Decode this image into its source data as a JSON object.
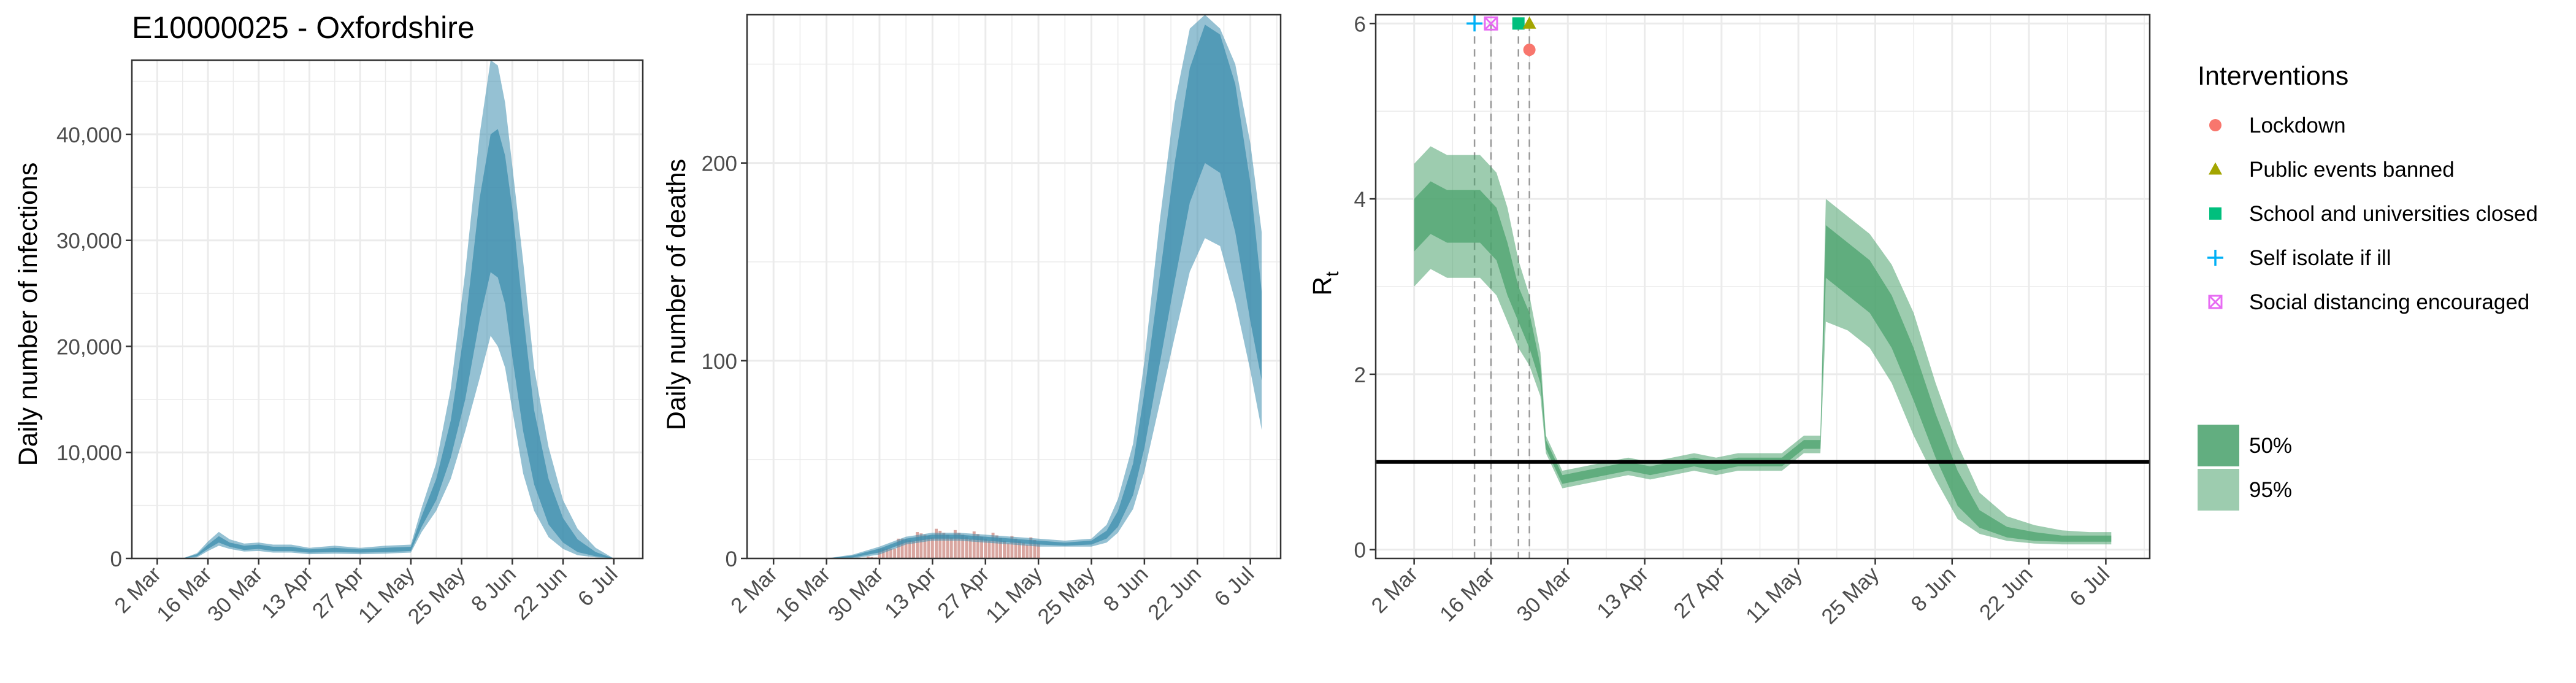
{
  "colors": {
    "infections": "#3E8EAE",
    "deaths": "#3E8EAE",
    "observed_deaths": "#D9A6A0",
    "rt": "#4CA36E",
    "lockdown": "#F8766D",
    "public_events_banned": "#A3A500",
    "school_closed": "#00BF7D",
    "self_isolate": "#00B0F6",
    "social_distancing": "#E76BF3",
    "reference_line": "#000000",
    "grid": "#EBEBEB",
    "axis_text": "#4D4D4D"
  },
  "chart_data": [
    {
      "type": "area",
      "title": "E10000025 - Oxfordshire",
      "xlabel": "",
      "ylabel": "Daily number of infections",
      "x_ticks": [
        "2 Mar",
        "16 Mar",
        "30 Mar",
        "13 Apr",
        "27 Apr",
        "11 May",
        "25 May",
        "8 Jun",
        "22 Jun",
        "6 Jul"
      ],
      "y_ticks": [
        "0",
        "10,000",
        "20,000",
        "30,000",
        "40,000"
      ],
      "x_range": [
        "2020-02-24",
        "2020-07-14"
      ],
      "ylim": [
        0,
        47000
      ],
      "grid": true,
      "series": [
        {
          "dates": [
            "2020-03-02",
            "2020-03-09",
            "2020-03-13",
            "2020-03-16",
            "2020-03-19",
            "2020-03-22",
            "2020-03-26",
            "2020-03-30",
            "2020-04-03",
            "2020-04-08",
            "2020-04-13",
            "2020-04-20",
            "2020-04-27",
            "2020-05-04",
            "2020-05-11",
            "2020-05-14",
            "2020-05-18",
            "2020-05-22",
            "2020-05-26",
            "2020-05-30",
            "2020-06-02",
            "2020-06-04",
            "2020-06-06",
            "2020-06-08",
            "2020-06-11",
            "2020-06-14",
            "2020-06-18",
            "2020-06-22",
            "2020-06-26",
            "2020-07-01",
            "2020-07-06"
          ],
          "median": [
            0,
            0,
            300,
            1100,
            1800,
            1300,
            1000,
            1100,
            900,
            900,
            700,
            800,
            700,
            800,
            900,
            3500,
            6500,
            11000,
            18000,
            27000,
            32500,
            33000,
            31000,
            26000,
            17000,
            10000,
            5000,
            2500,
            1100,
            400,
            0
          ],
          "ci50_low": [
            0,
            0,
            200,
            900,
            1500,
            1100,
            800,
            900,
            700,
            700,
            550,
            600,
            550,
            600,
            700,
            3000,
            5500,
            9500,
            15000,
            22500,
            27000,
            26500,
            24000,
            19000,
            12000,
            7000,
            3200,
            1500,
            600,
            200,
            0
          ],
          "ci50_high": [
            0,
            0,
            400,
            1300,
            2100,
            1500,
            1200,
            1300,
            1100,
            1100,
            850,
            1000,
            850,
            1000,
            1100,
            4000,
            7500,
            13000,
            22000,
            34000,
            40000,
            40500,
            38000,
            33000,
            23000,
            14000,
            7500,
            3800,
            1800,
            600,
            0
          ],
          "ci95_low": [
            0,
            0,
            100,
            700,
            1200,
            900,
            650,
            700,
            550,
            550,
            400,
            450,
            400,
            450,
            550,
            2500,
            4500,
            7500,
            12000,
            17000,
            21000,
            20000,
            18000,
            14000,
            8000,
            4500,
            2000,
            900,
            300,
            100,
            0
          ],
          "ci95_high": [
            0,
            0,
            500,
            1600,
            2500,
            1800,
            1400,
            1500,
            1300,
            1300,
            1000,
            1200,
            1000,
            1200,
            1300,
            4800,
            9000,
            16000,
            27000,
            40000,
            47000,
            46500,
            43000,
            37000,
            28000,
            18000,
            10500,
            5500,
            2800,
            1000,
            0
          ]
        }
      ]
    },
    {
      "type": "area",
      "title": "",
      "xlabel": "",
      "ylabel": "Daily number of deaths",
      "x_ticks": [
        "2 Mar",
        "16 Mar",
        "30 Mar",
        "13 Apr",
        "27 Apr",
        "11 May",
        "25 May",
        "8 Jun",
        "22 Jun",
        "6 Jul"
      ],
      "y_ticks": [
        "0",
        "100",
        "200"
      ],
      "x_range": [
        "2020-02-24",
        "2020-07-14"
      ],
      "ylim": [
        0,
        275
      ],
      "grid": true,
      "series": [
        {
          "dates": [
            "2020-03-02",
            "2020-03-16",
            "2020-03-23",
            "2020-03-30",
            "2020-04-06",
            "2020-04-13",
            "2020-04-20",
            "2020-04-27",
            "2020-05-04",
            "2020-05-11",
            "2020-05-18",
            "2020-05-25",
            "2020-05-29",
            "2020-06-01",
            "2020-06-05",
            "2020-06-08",
            "2020-06-12",
            "2020-06-16",
            "2020-06-20",
            "2020-06-24",
            "2020-06-28",
            "2020-07-02",
            "2020-07-06",
            "2020-07-09"
          ],
          "median": [
            0,
            0,
            1,
            4,
            9,
            11,
            11,
            10,
            9,
            8,
            7,
            8,
            12,
            20,
            40,
            70,
            120,
            170,
            215,
            238,
            230,
            200,
            150,
            110
          ],
          "ci50_low": [
            0,
            0,
            0.5,
            3,
            8,
            10,
            10,
            9,
            8,
            7,
            6.5,
            7,
            10,
            16,
            32,
            56,
            98,
            140,
            180,
            200,
            195,
            165,
            120,
            90
          ],
          "ci50_high": [
            0,
            0,
            1.5,
            5,
            10,
            12,
            12,
            11,
            10,
            9,
            8,
            9,
            14,
            24,
            48,
            84,
            142,
            200,
            248,
            270,
            265,
            240,
            190,
            135
          ],
          "ci95_low": [
            0,
            0,
            0,
            2,
            7,
            9,
            9,
            8,
            7,
            6,
            6,
            6,
            8,
            13,
            25,
            44,
            78,
            112,
            145,
            162,
            158,
            130,
            95,
            65
          ],
          "ci95_high": [
            0,
            0,
            2,
            6,
            11,
            13,
            13,
            12,
            11,
            10,
            9,
            10,
            17,
            30,
            58,
            100,
            170,
            230,
            268,
            275,
            268,
            250,
            210,
            165
          ]
        }
      ],
      "observed_deaths": {
        "dates": [
          "2020-03-27",
          "2020-03-30",
          "2020-04-02",
          "2020-04-05",
          "2020-04-08",
          "2020-04-11",
          "2020-04-14",
          "2020-04-17",
          "2020-04-20",
          "2020-04-23",
          "2020-04-26",
          "2020-04-29",
          "2020-05-02",
          "2020-05-05",
          "2020-05-08",
          "2020-05-11"
        ],
        "values": [
          1,
          3,
          6,
          9,
          11,
          12,
          13,
          13,
          12,
          12,
          11,
          11,
          10,
          9,
          9,
          8
        ]
      }
    },
    {
      "type": "area",
      "title": "",
      "xlabel": "",
      "ylabel": "R",
      "ylabel_subscript": "t",
      "x_ticks": [
        "2 Mar",
        "16 Mar",
        "30 Mar",
        "13 Apr",
        "27 Apr",
        "11 May",
        "25 May",
        "8 Jun",
        "22 Jun",
        "6 Jul"
      ],
      "y_ticks": [
        "0",
        "2",
        "4",
        "6"
      ],
      "x_range": [
        "2020-02-24",
        "2020-07-14"
      ],
      "ylim": [
        -0.1,
        6.1
      ],
      "grid": true,
      "reference_line": 1,
      "series": [
        {
          "dates": [
            "2020-03-02",
            "2020-03-05",
            "2020-03-08",
            "2020-03-11",
            "2020-03-14",
            "2020-03-17",
            "2020-03-19",
            "2020-03-21",
            "2020-03-23",
            "2020-03-25",
            "2020-03-26",
            "2020-03-29",
            "2020-04-02",
            "2020-04-06",
            "2020-04-10",
            "2020-04-14",
            "2020-04-18",
            "2020-04-22",
            "2020-04-26",
            "2020-04-30",
            "2020-05-04",
            "2020-05-08",
            "2020-05-12",
            "2020-05-15",
            "2020-05-16",
            "2020-05-20",
            "2020-05-24",
            "2020-05-28",
            "2020-06-01",
            "2020-06-05",
            "2020-06-09",
            "2020-06-13",
            "2020-06-18",
            "2020-06-23",
            "2020-06-28",
            "2020-07-03",
            "2020-07-07"
          ],
          "median": [
            3.7,
            3.9,
            3.8,
            3.8,
            3.8,
            3.6,
            3.2,
            2.8,
            2.5,
            2.0,
            1.2,
            0.8,
            0.85,
            0.9,
            0.95,
            0.9,
            0.95,
            1.0,
            0.95,
            1.0,
            1.0,
            1.0,
            1.2,
            1.2,
            3.4,
            3.2,
            3.0,
            2.6,
            2.0,
            1.3,
            0.7,
            0.35,
            0.2,
            0.15,
            0.12,
            0.12,
            0.12
          ],
          "ci50_low": [
            3.4,
            3.6,
            3.5,
            3.5,
            3.5,
            3.3,
            2.9,
            2.6,
            2.3,
            1.9,
            1.15,
            0.75,
            0.8,
            0.85,
            0.9,
            0.85,
            0.9,
            0.95,
            0.9,
            0.95,
            0.95,
            0.95,
            1.15,
            1.15,
            3.1,
            2.9,
            2.7,
            2.3,
            1.7,
            1.05,
            0.5,
            0.25,
            0.14,
            0.1,
            0.09,
            0.09,
            0.09
          ],
          "ci50_high": [
            4.0,
            4.2,
            4.1,
            4.1,
            4.1,
            3.9,
            3.5,
            3.0,
            2.7,
            2.1,
            1.25,
            0.85,
            0.9,
            0.95,
            1.0,
            0.95,
            1.0,
            1.05,
            1.0,
            1.05,
            1.05,
            1.05,
            1.25,
            1.25,
            3.7,
            3.5,
            3.3,
            2.9,
            2.3,
            1.55,
            0.9,
            0.45,
            0.26,
            0.2,
            0.16,
            0.16,
            0.16
          ],
          "ci95_low": [
            3.0,
            3.2,
            3.1,
            3.1,
            3.1,
            2.9,
            2.6,
            2.3,
            2.1,
            1.75,
            1.1,
            0.7,
            0.75,
            0.8,
            0.85,
            0.8,
            0.85,
            0.9,
            0.85,
            0.9,
            0.9,
            0.9,
            1.1,
            1.1,
            2.6,
            2.5,
            2.3,
            1.9,
            1.3,
            0.8,
            0.35,
            0.18,
            0.1,
            0.07,
            0.06,
            0.06,
            0.06
          ],
          "ci95_high": [
            4.4,
            4.6,
            4.5,
            4.5,
            4.5,
            4.3,
            3.9,
            3.3,
            2.9,
            2.25,
            1.3,
            0.9,
            0.95,
            1.0,
            1.05,
            1.0,
            1.05,
            1.1,
            1.05,
            1.1,
            1.1,
            1.1,
            1.3,
            1.3,
            4.0,
            3.8,
            3.6,
            3.25,
            2.7,
            1.9,
            1.2,
            0.65,
            0.38,
            0.28,
            0.22,
            0.2,
            0.2
          ]
        }
      ],
      "interventions": [
        {
          "name": "Self isolate if ill",
          "date": "2020-03-13",
          "y": 6.0,
          "symbol": "plus",
          "color_key": "self_isolate"
        },
        {
          "name": "Social distancing encouraged",
          "date": "2020-03-16",
          "y": 6.0,
          "symbol": "boxcross",
          "color_key": "social_distancing"
        },
        {
          "name": "School and universities closed",
          "date": "2020-03-21",
          "y": 6.0,
          "symbol": "square",
          "color_key": "school_closed"
        },
        {
          "name": "Public events banned",
          "date": "2020-03-23",
          "y": 6.0,
          "symbol": "triangle",
          "color_key": "public_events_banned"
        },
        {
          "name": "Lockdown",
          "date": "2020-03-23",
          "y": 5.7,
          "symbol": "circle",
          "color_key": "lockdown"
        }
      ]
    }
  ],
  "legend": {
    "title": "Interventions",
    "placement": "right",
    "items": [
      {
        "label": "Lockdown",
        "symbol": "circle",
        "color_key": "lockdown"
      },
      {
        "label": "Public events banned",
        "symbol": "triangle",
        "color_key": "public_events_banned"
      },
      {
        "label": "School and universities closed",
        "symbol": "square",
        "color_key": "school_closed"
      },
      {
        "label": "Self isolate if ill",
        "symbol": "plus",
        "color_key": "self_isolate"
      },
      {
        "label": "Social distancing encouraged",
        "symbol": "boxcross",
        "color_key": "social_distancing"
      }
    ],
    "ci_items": [
      {
        "label": "50%"
      },
      {
        "label": "95%"
      }
    ]
  }
}
